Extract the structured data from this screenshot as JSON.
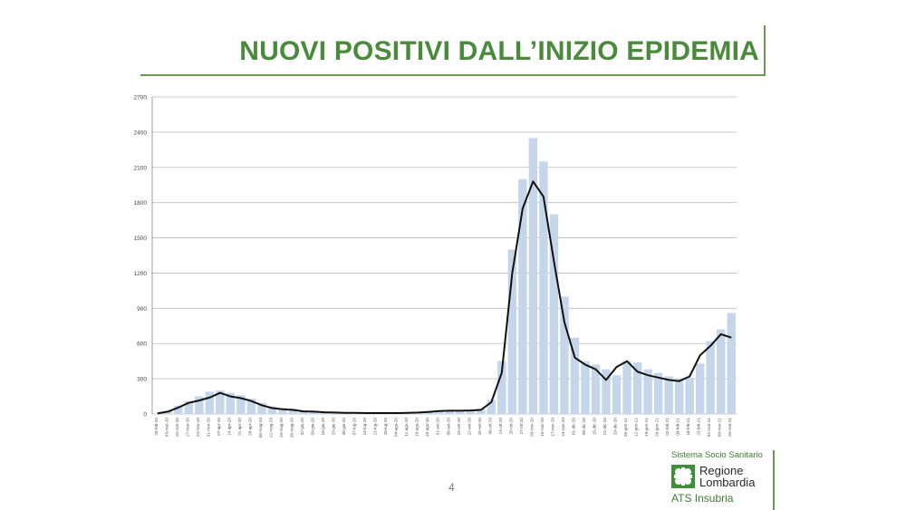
{
  "slide": {
    "title": "NUOVI POSITIVI DALL’INIZIO EPIDEMIA",
    "page_number": "4"
  },
  "logo": {
    "top_text": "Sistema Socio Sanitario",
    "region_line1": "Regione",
    "region_line2": "Lombardia",
    "bottom_text": "ATS Insubria",
    "brand_color": "#3f8f3a"
  },
  "colors": {
    "title": "#4a8a3b",
    "bar": "#c5d6ea",
    "line": "#111111",
    "grid": "#bdbdbd"
  },
  "chart_data": {
    "type": "bar",
    "title": "",
    "xlabel": "",
    "ylabel": "",
    "ylim": [
      0,
      2700
    ],
    "yticks": [
      0,
      300,
      600,
      900,
      1200,
      1500,
      1800,
      2100,
      2400,
      2700
    ],
    "grid": true,
    "legend": "none",
    "categories": [
      "25-feb-20",
      "03-mar-20",
      "10-mar-20",
      "17-mar-20",
      "24-mar-20",
      "31-mar-20",
      "07-apr-20",
      "14-apr-20",
      "21-apr-20",
      "28-apr-20",
      "05-mag-20",
      "12-mag-20",
      "19-mag-20",
      "26-mag-20",
      "02-giu-20",
      "09-giu-20",
      "16-giu-20",
      "23-giu-20",
      "30-giu-20",
      "07-lug-20",
      "14-lug-20",
      "21-lug-20",
      "28-lug-20",
      "04-ago-20",
      "11-ago-20",
      "18-ago-20",
      "25-ago-20",
      "01-set-20",
      "08-set-20",
      "15-set-20",
      "22-set-20",
      "29-set-20",
      "06-ott-20",
      "13-ott-20",
      "20-ott-20",
      "27-ott-20",
      "03-nov-20",
      "10-nov-20",
      "17-nov-20",
      "24-nov-20",
      "01-dic-20",
      "08-dic-20",
      "15-dic-20",
      "22-dic-20",
      "29-dic-20",
      "05-gen-21",
      "12-gen-21",
      "19-gen-21",
      "26-gen-21",
      "02-feb-21",
      "09-feb-21",
      "16-feb-21",
      "23-feb-21",
      "02-mar-21",
      "09-mar-21",
      "16-mar-21"
    ],
    "series": [
      {
        "type": "bar",
        "values": [
          3,
          25,
          70,
          110,
          150,
          190,
          200,
          180,
          160,
          130,
          95,
          65,
          50,
          45,
          30,
          25,
          20,
          15,
          12,
          10,
          8,
          8,
          8,
          8,
          10,
          15,
          25,
          30,
          32,
          28,
          35,
          45,
          120,
          450,
          1400,
          2000,
          2350,
          2150,
          1700,
          1000,
          650,
          450,
          420,
          380,
          330,
          450,
          440,
          380,
          350,
          320,
          300,
          310,
          430,
          620,
          720,
          860
        ]
      },
      {
        "type": "line",
        "values": [
          5,
          20,
          55,
          95,
          115,
          140,
          180,
          150,
          135,
          110,
          75,
          50,
          40,
          35,
          22,
          20,
          15,
          12,
          10,
          9,
          8,
          8,
          8,
          8,
          10,
          12,
          18,
          25,
          28,
          28,
          30,
          35,
          100,
          350,
          1200,
          1750,
          1980,
          1850,
          1300,
          780,
          480,
          420,
          380,
          290,
          400,
          450,
          360,
          330,
          310,
          290,
          280,
          320,
          500,
          580,
          680,
          650
        ]
      }
    ]
  }
}
